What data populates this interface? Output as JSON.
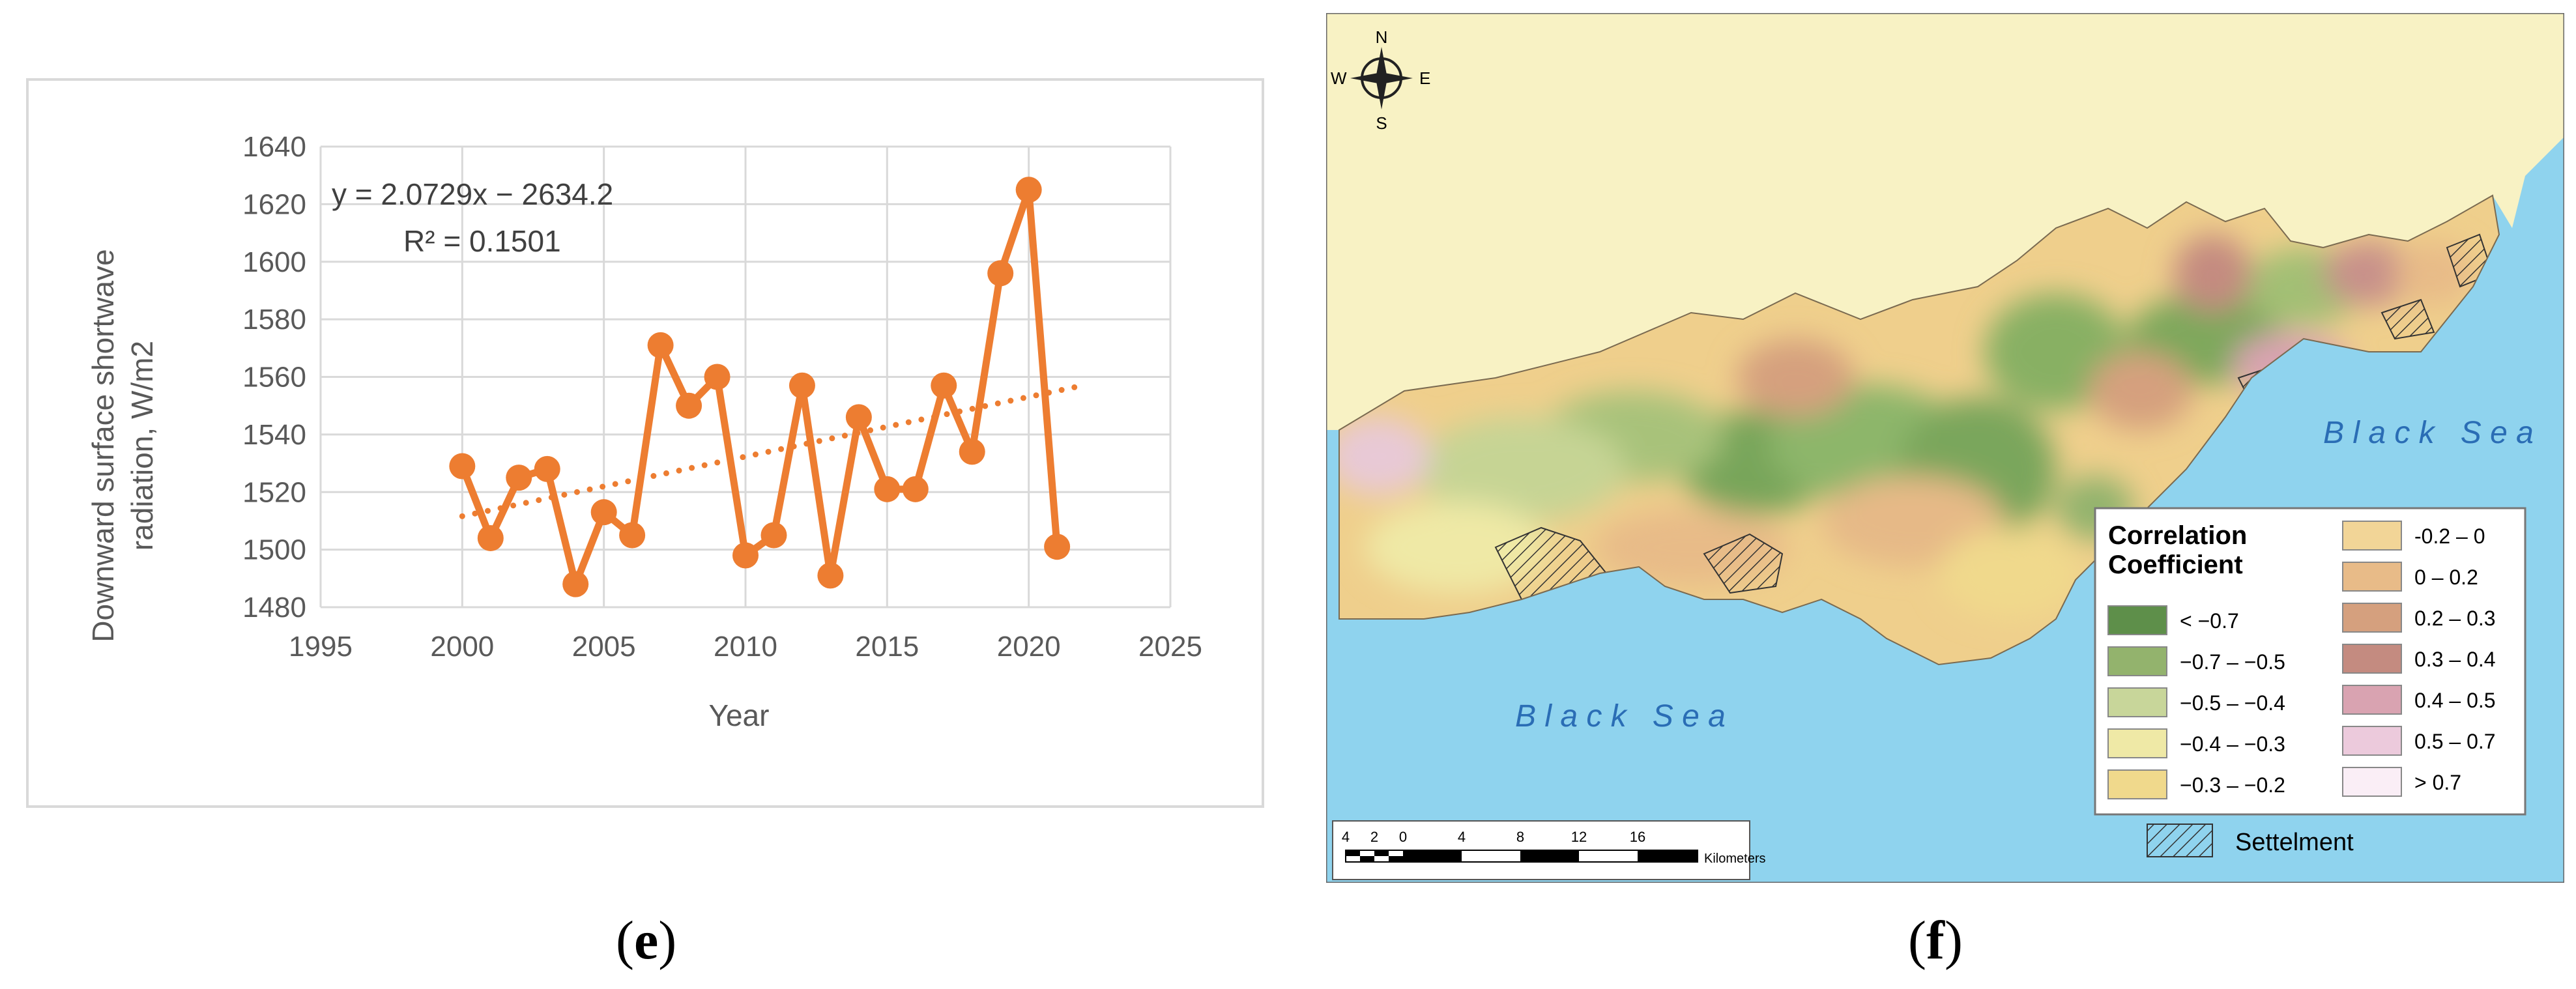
{
  "panel_e": {
    "caption_open": "(",
    "caption_letter": "e",
    "caption_close": ")",
    "equation": "y = 2.0729x − 2634.2",
    "r_squared": "R² = 0.1501",
    "colors": {
      "series": "#ed7d31",
      "grid": "#d9d9d9",
      "text": "#595959"
    }
  },
  "chart_data": {
    "type": "line",
    "xlabel": "Year",
    "ylabel_lines": [
      "Downward surface shortwave",
      "radiation, W/m2"
    ],
    "x_ticks": [
      "1995",
      "2000",
      "2005",
      "2010",
      "2015",
      "2020",
      "2025"
    ],
    "y_ticks": [
      "1480",
      "1500",
      "1520",
      "1540",
      "1560",
      "1580",
      "1600",
      "1620",
      "1640"
    ],
    "xlim": [
      1995,
      2025
    ],
    "ylim": [
      1480,
      1640
    ],
    "series": [
      {
        "x": [
          2000,
          2001,
          2002,
          2003,
          2004,
          2005,
          2006,
          2007,
          2008,
          2009,
          2010,
          2011,
          2012,
          2013,
          2014,
          2015,
          2016,
          2017,
          2018,
          2019,
          2020,
          2021
        ],
        "y": [
          1529,
          1504,
          1525,
          1528,
          1488,
          1513,
          1505,
          1571,
          1550,
          1560,
          1498,
          1505,
          1557,
          1491,
          1546,
          1521,
          1521,
          1557,
          1534,
          1596,
          1625,
          1501
        ]
      }
    ],
    "trendline": {
      "type": "linear",
      "slope": 2.0729,
      "intercept": -2634.2,
      "x_range": [
        2000,
        2022
      ]
    },
    "grid": true
  },
  "panel_f": {
    "caption_open": "(",
    "caption_letter": "f",
    "caption_close": ")",
    "compass": {
      "n": "N",
      "s": "S",
      "e": "E",
      "w": "W"
    },
    "sea_label_right": "B l a c k   S e a",
    "sea_label_left": "B l a c k   S e a",
    "legend_title_1": "Correlation",
    "legend_title_2": "Coefficient",
    "legend_left": [
      {
        "label": "< −0.7",
        "color": "#5e8f4a"
      },
      {
        "label": "−0.7 – −0.5",
        "color": "#93b36d"
      },
      {
        "label": "−0.5 – −0.4",
        "color": "#c8d69a"
      },
      {
        "label": "−0.4 – −0.3",
        "color": "#efe9a6"
      },
      {
        "label": "−0.3 – −0.2",
        "color": "#f0d98c"
      }
    ],
    "legend_right": [
      {
        "label": "-0.2 – 0",
        "color": "#f2d597"
      },
      {
        "label": "0 – 0.2",
        "color": "#e8bb88"
      },
      {
        "label": "0.2 – 0.3",
        "color": "#d5a07e"
      },
      {
        "label": "0.3 – 0.4",
        "color": "#c48b80"
      },
      {
        "label": "0.4 – 0.5",
        "color": "#d9a3b1"
      },
      {
        "label": "0.5 – 0.7",
        "color": "#eccadc"
      },
      {
        "label": "> 0.7",
        "color": "#faeef6"
      }
    ],
    "settlement_label": "Settelment",
    "scale_labels": [
      "4",
      "2",
      "0",
      "4",
      "8",
      "12",
      "16"
    ],
    "scale_unit": "Kilometers",
    "colors": {
      "sea": "#8fd3ee",
      "land_background": "#f8f2c4",
      "sea_text": "#2a6db5"
    }
  }
}
